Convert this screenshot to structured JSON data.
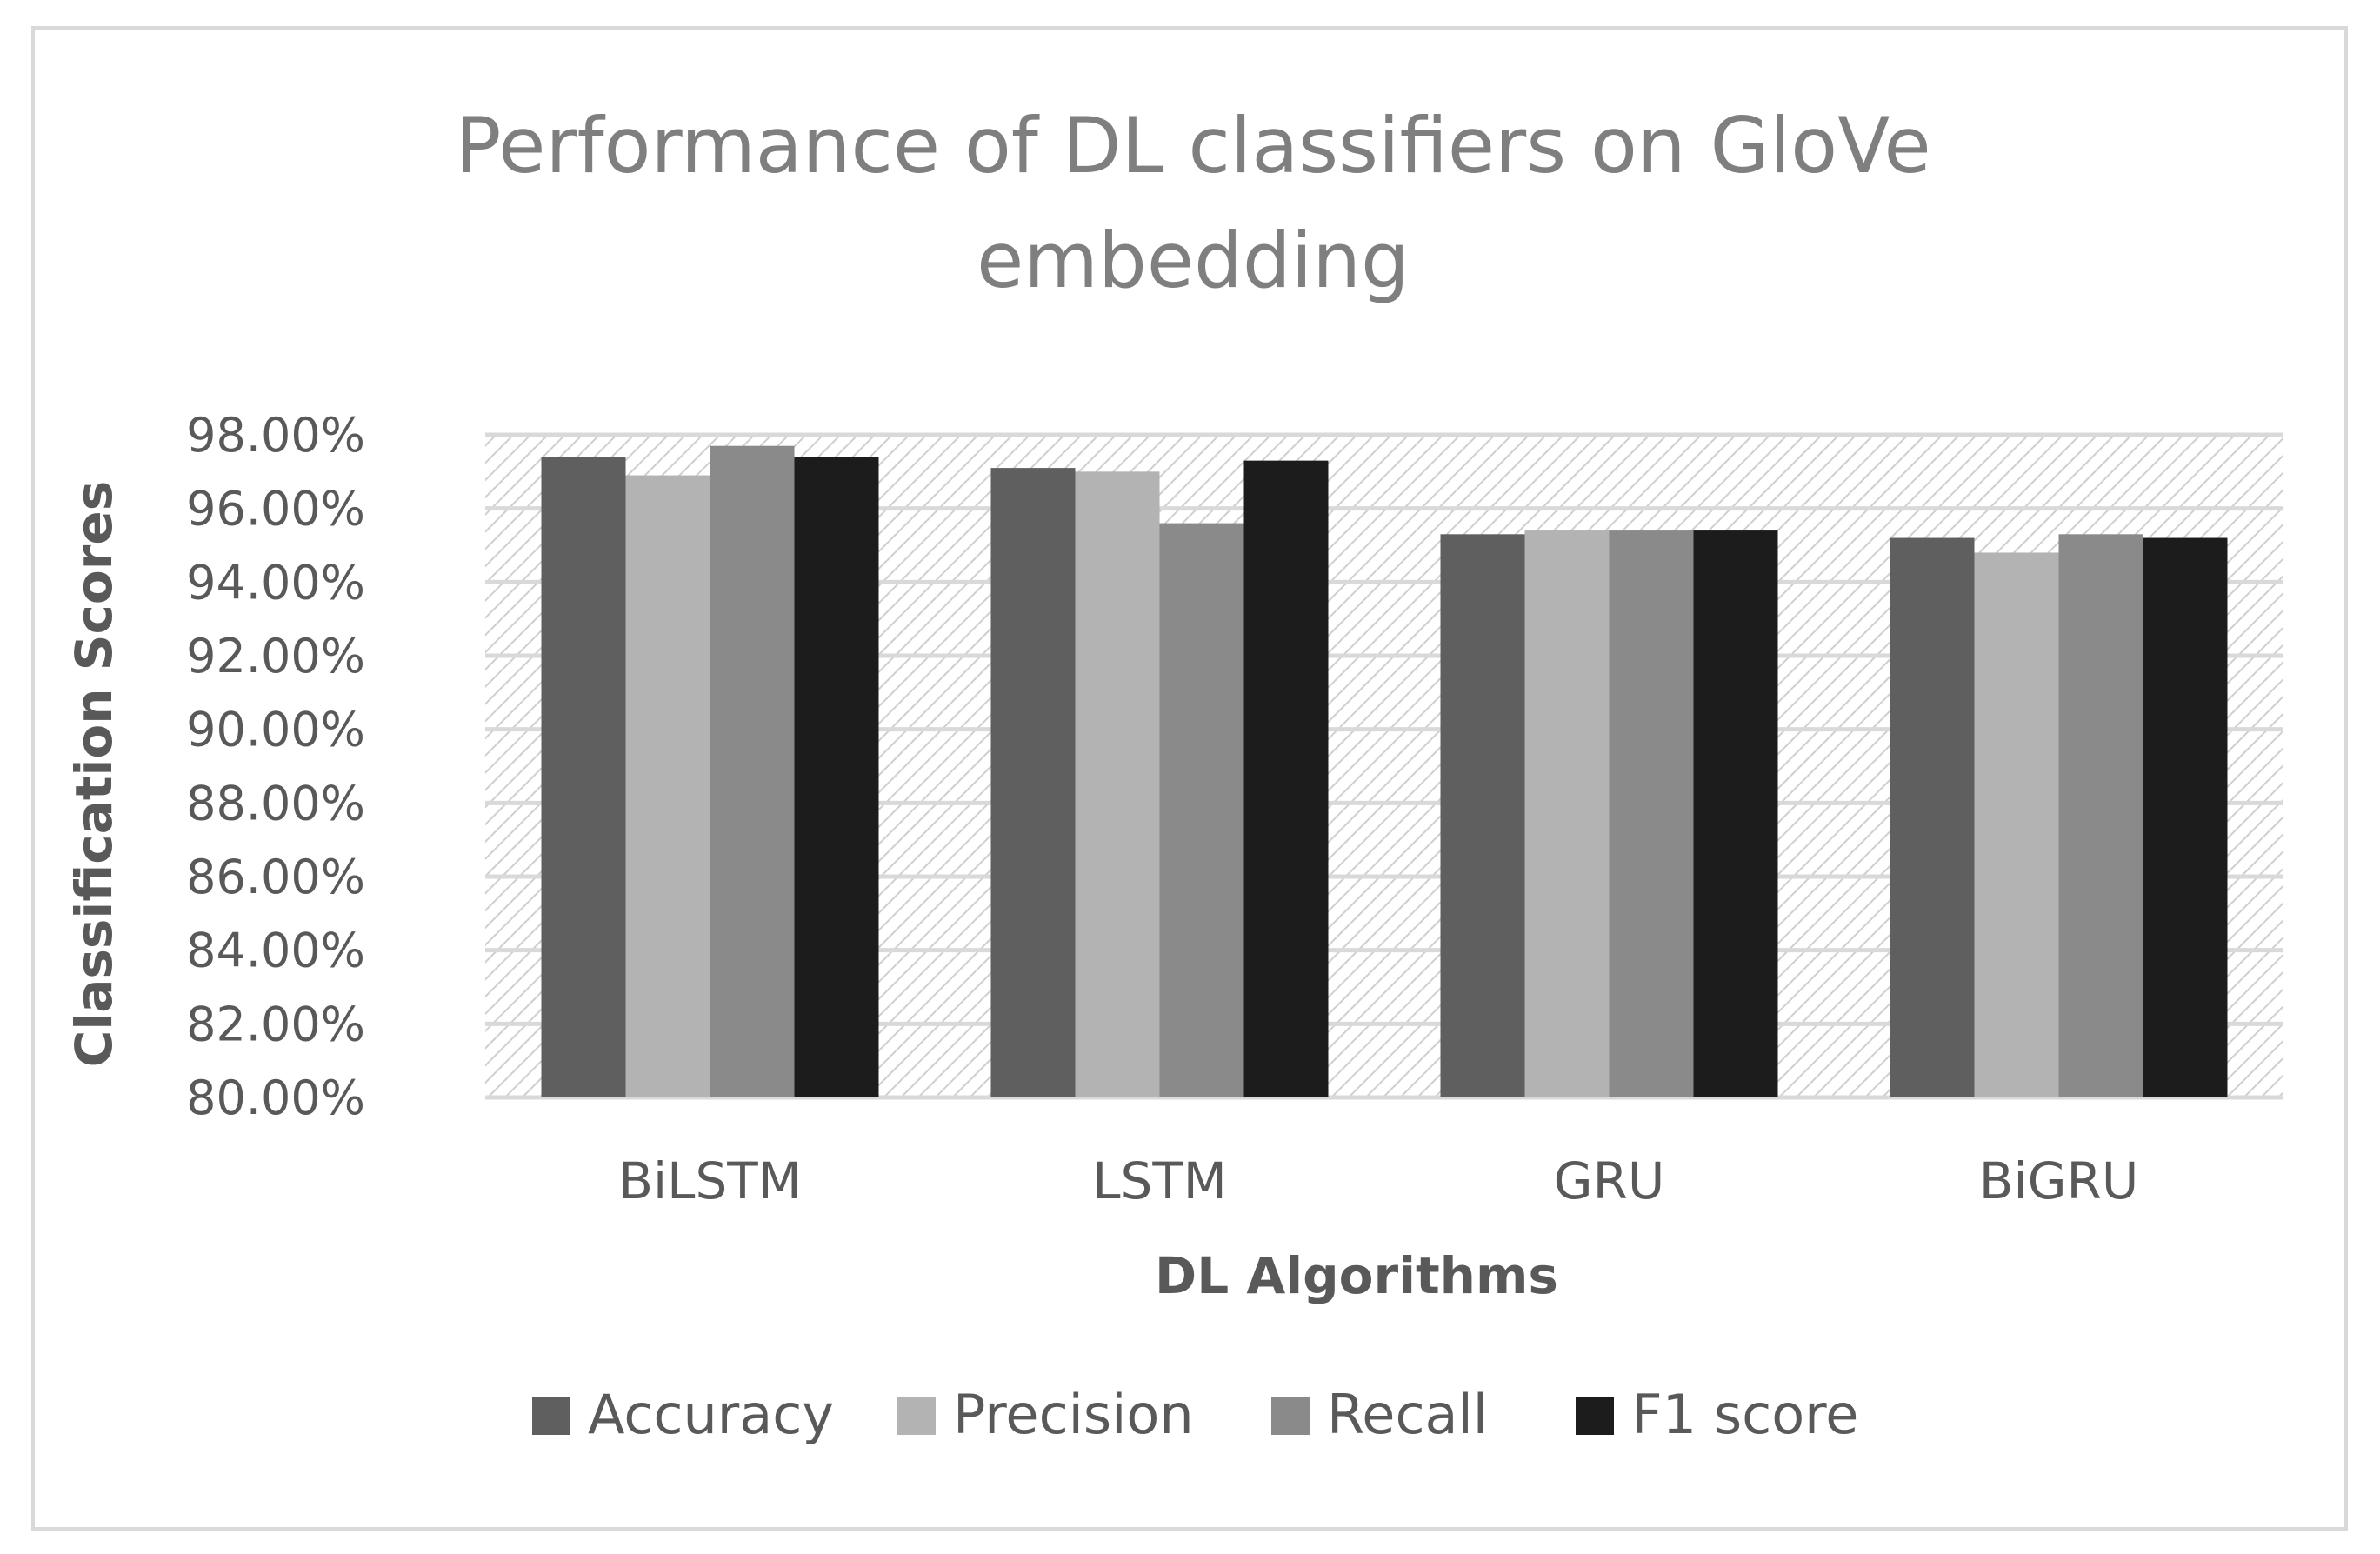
{
  "chart_data": {
    "type": "bar",
    "title_lines": [
      "Performance of DL classifiers on GloVe",
      "embedding"
    ],
    "xlabel": "DL Algorithms",
    "ylabel": "Classification Scores",
    "categories": [
      "BiLSTM",
      "LSTM",
      "GRU",
      "BiGRU"
    ],
    "series": [
      {
        "name": "Accuracy",
        "color": "#5f5f5f",
        "values": [
          97.4,
          97.1,
          95.3,
          95.2
        ]
      },
      {
        "name": "Precision",
        "color": "#b3b3b3",
        "values": [
          96.9,
          97.0,
          95.4,
          94.8
        ]
      },
      {
        "name": "Recall",
        "color": "#8a8a8a",
        "values": [
          97.7,
          95.6,
          95.4,
          95.3
        ]
      },
      {
        "name": "F1 score",
        "color": "#1c1c1c",
        "values": [
          97.4,
          97.3,
          95.4,
          95.2
        ]
      }
    ],
    "ylim": [
      80,
      98
    ],
    "yticks": [
      80,
      82,
      84,
      86,
      88,
      90,
      92,
      94,
      96,
      98
    ],
    "ytick_labels": [
      "80.00%",
      "82.00%",
      "84.00%",
      "86.00%",
      "88.00%",
      "90.00%",
      "92.00%",
      "94.00%",
      "96.00%",
      "98.00%"
    ],
    "grid": true,
    "legend_position": "bottom"
  }
}
